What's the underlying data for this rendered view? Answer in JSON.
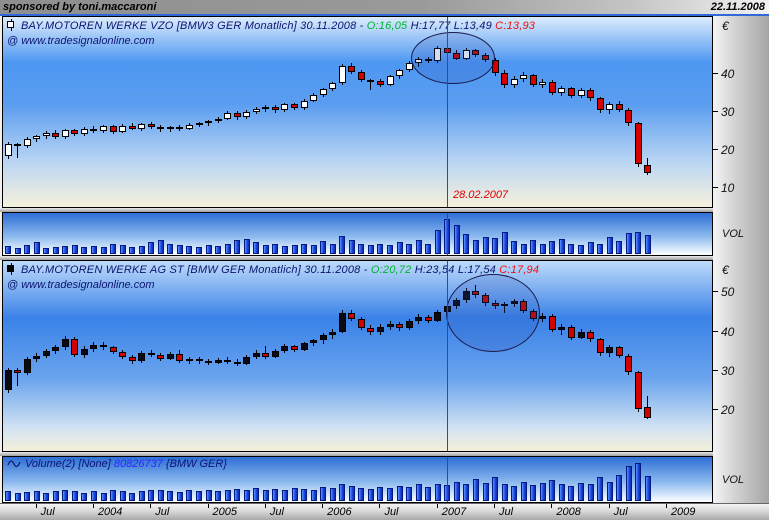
{
  "titlebar": {
    "sponsor": "sponsored by toni.maccaroni",
    "date": "22.11.2008"
  },
  "watermark": "@ www.tradesignalonline.com",
  "axis": {
    "currency_label": "€",
    "volume_label": "VOL"
  },
  "bottom_axis": {
    "labels": [
      "Jul",
      "2004",
      "Jul",
      "2005",
      "Jul",
      "2006",
      "Jul",
      "2007",
      "Jul",
      "2008",
      "Jul",
      "2009"
    ]
  },
  "cursor": {
    "month_index": 46,
    "date_label": "28.02.2007",
    "color": "#ff0000"
  },
  "chart_data": [
    {
      "type": "candlestick",
      "id": "chart1",
      "title": "BAY.MOTOREN WERKE  VZO [BMW3 GER  Monatlich] 30.11.2008 -",
      "ohlc_display": {
        "open": "O:16,05",
        "high_low": "H:17,77 L:13,49",
        "close": "C:13,93"
      },
      "interval": "monthly",
      "start_month": "2003-04",
      "y_axis": {
        "unit": "€",
        "min": 5,
        "max": 55,
        "ticks": [
          40,
          30,
          20,
          10
        ]
      },
      "up_color": "#ffffff",
      "down_color": "#d40000",
      "ellipse": {
        "month": 46.5,
        "price": 44.5,
        "rx_months": 4.3,
        "ry_price": 6.6
      },
      "candles": [
        [
          18.3,
          22.0,
          17.6,
          21.5
        ],
        [
          21.5,
          21.9,
          17.8,
          21.0
        ],
        [
          21.0,
          23.3,
          20.4,
          22.8
        ],
        [
          22.8,
          24.0,
          22.0,
          23.6
        ],
        [
          23.6,
          25.0,
          23.0,
          24.6
        ],
        [
          24.6,
          25.2,
          22.8,
          23.4
        ],
        [
          23.4,
          25.6,
          23.0,
          25.2
        ],
        [
          25.2,
          25.6,
          23.6,
          24.2
        ],
        [
          24.2,
          26.0,
          23.8,
          25.6
        ],
        [
          25.6,
          26.4,
          24.6,
          25.0
        ],
        [
          25.0,
          26.6,
          24.4,
          26.2
        ],
        [
          26.2,
          26.6,
          24.2,
          24.8
        ],
        [
          24.8,
          26.8,
          24.4,
          26.4
        ],
        [
          26.4,
          27.0,
          25.2,
          25.6
        ],
        [
          25.6,
          27.2,
          25.0,
          26.8
        ],
        [
          26.8,
          27.4,
          25.4,
          26.0
        ],
        [
          26.0,
          26.6,
          24.8,
          25.4
        ],
        [
          25.4,
          26.4,
          24.8,
          26.0
        ],
        [
          26.0,
          26.6,
          25.0,
          25.6
        ],
        [
          25.6,
          27.0,
          25.2,
          26.6
        ],
        [
          26.6,
          27.4,
          26.0,
          27.0
        ],
        [
          27.0,
          28.0,
          26.2,
          27.6
        ],
        [
          27.6,
          28.6,
          27.0,
          28.2
        ],
        [
          28.2,
          30.2,
          27.8,
          29.8
        ],
        [
          29.8,
          30.2,
          28.0,
          28.6
        ],
        [
          28.6,
          30.4,
          28.2,
          30.0
        ],
        [
          30.0,
          31.2,
          29.4,
          30.8
        ],
        [
          30.8,
          31.8,
          30.0,
          31.4
        ],
        [
          31.4,
          31.8,
          29.8,
          30.4
        ],
        [
          30.4,
          32.4,
          30.0,
          32.0
        ],
        [
          32.0,
          32.4,
          30.4,
          31.0
        ],
        [
          31.0,
          33.4,
          30.6,
          33.0
        ],
        [
          33.0,
          35.0,
          32.6,
          34.6
        ],
        [
          34.6,
          36.4,
          34.0,
          36.0
        ],
        [
          36.0,
          38.0,
          35.4,
          37.6
        ],
        [
          37.6,
          42.6,
          37.2,
          42.2
        ],
        [
          42.2,
          42.8,
          40.0,
          40.6
        ],
        [
          40.6,
          41.0,
          37.8,
          38.4
        ],
        [
          38.4,
          38.8,
          35.8,
          38.2
        ],
        [
          38.2,
          38.6,
          36.6,
          37.2
        ],
        [
          37.2,
          39.8,
          36.8,
          39.4
        ],
        [
          39.4,
          41.4,
          38.8,
          41.0
        ],
        [
          41.0,
          43.4,
          40.4,
          43.0
        ],
        [
          43.0,
          44.4,
          41.8,
          44.0
        ],
        [
          44.0,
          44.6,
          42.8,
          43.4
        ],
        [
          43.4,
          47.4,
          43.0,
          46.8
        ],
        [
          46.8,
          48.8,
          44.8,
          45.4
        ],
        [
          45.4,
          46.4,
          43.6,
          44.0
        ],
        [
          44.0,
          46.8,
          43.6,
          46.2
        ],
        [
          46.2,
          46.6,
          44.4,
          45.0
        ],
        [
          45.0,
          45.6,
          43.2,
          43.8
        ],
        [
          43.8,
          44.2,
          39.6,
          40.2
        ],
        [
          40.2,
          41.0,
          36.4,
          37.0
        ],
        [
          37.0,
          39.4,
          36.2,
          38.8
        ],
        [
          38.8,
          40.4,
          37.8,
          39.8
        ],
        [
          39.8,
          40.0,
          36.6,
          37.2
        ],
        [
          37.2,
          38.6,
          36.2,
          38.0
        ],
        [
          38.0,
          38.4,
          34.4,
          35.0
        ],
        [
          35.0,
          36.8,
          34.2,
          36.2
        ],
        [
          36.2,
          36.6,
          33.6,
          34.2
        ],
        [
          34.2,
          36.4,
          33.8,
          35.8
        ],
        [
          35.8,
          36.2,
          33.0,
          33.6
        ],
        [
          33.6,
          34.0,
          29.8,
          30.4
        ],
        [
          30.4,
          32.6,
          29.6,
          32.0
        ],
        [
          32.0,
          32.8,
          30.0,
          30.6
        ],
        [
          30.6,
          31.0,
          26.4,
          27.0
        ],
        [
          27.0,
          27.4,
          15.6,
          16.4
        ],
        [
          16.05,
          17.77,
          13.49,
          13.93
        ]
      ]
    },
    {
      "type": "candlestick",
      "id": "chart2",
      "title": "BAY.MOTOREN WERKE AG ST [BMW GER  Monatlich] 30.11.2008 -",
      "ohlc_display": {
        "open": "O:20,72",
        "high_low": "H:23,54 L:17,54",
        "close": "C:17,94"
      },
      "interval": "monthly",
      "start_month": "2003-04",
      "y_axis": {
        "unit": "€",
        "min": 9.5,
        "max": 58,
        "ticks": [
          50,
          40,
          30,
          20
        ]
      },
      "up_color": "#0a0a14",
      "down_color": "#d40000",
      "ellipse": {
        "month": 50.7,
        "price": 45.0,
        "rx_months": 4.8,
        "ry_price": 9.7
      },
      "candles": [
        [
          25.0,
          30.8,
          24.4,
          30.2
        ],
        [
          30.2,
          30.6,
          26.2,
          29.4
        ],
        [
          29.4,
          33.6,
          28.8,
          33.0
        ],
        [
          33.0,
          34.4,
          32.2,
          33.8
        ],
        [
          33.8,
          35.6,
          33.2,
          35.0
        ],
        [
          35.0,
          36.6,
          34.2,
          36.0
        ],
        [
          36.0,
          38.8,
          35.2,
          38.2
        ],
        [
          38.2,
          38.6,
          33.4,
          34.0
        ],
        [
          34.0,
          36.2,
          33.2,
          35.6
        ],
        [
          35.6,
          37.2,
          34.8,
          36.6
        ],
        [
          36.6,
          37.4,
          35.4,
          36.0
        ],
        [
          36.0,
          36.4,
          34.2,
          34.8
        ],
        [
          34.8,
          35.2,
          33.0,
          33.6
        ],
        [
          33.6,
          34.0,
          31.8,
          32.4
        ],
        [
          32.4,
          35.0,
          32.0,
          34.4
        ],
        [
          34.4,
          35.4,
          33.6,
          34.0
        ],
        [
          34.0,
          34.6,
          32.4,
          33.0
        ],
        [
          33.0,
          34.8,
          32.6,
          34.2
        ],
        [
          34.2,
          35.4,
          32.0,
          32.6
        ],
        [
          32.6,
          33.4,
          31.6,
          33.0
        ],
        [
          33.0,
          33.6,
          31.8,
          32.4
        ],
        [
          32.4,
          33.0,
          31.4,
          32.0
        ],
        [
          32.0,
          33.2,
          31.6,
          32.8
        ],
        [
          32.8,
          33.4,
          31.8,
          32.2
        ],
        [
          32.2,
          33.0,
          31.2,
          31.8
        ],
        [
          31.8,
          34.0,
          31.4,
          33.4
        ],
        [
          33.4,
          35.2,
          33.0,
          34.6
        ],
        [
          34.6,
          36.4,
          33.0,
          33.6
        ],
        [
          33.6,
          35.6,
          33.2,
          35.0
        ],
        [
          35.0,
          36.8,
          34.4,
          36.2
        ],
        [
          36.2,
          36.6,
          34.8,
          35.4
        ],
        [
          35.4,
          37.4,
          35.0,
          37.0
        ],
        [
          37.0,
          38.2,
          36.2,
          37.8
        ],
        [
          37.8,
          39.6,
          36.8,
          39.0
        ],
        [
          39.0,
          40.6,
          38.2,
          40.0
        ],
        [
          40.0,
          45.4,
          39.6,
          44.8
        ],
        [
          44.8,
          45.4,
          42.6,
          43.2
        ],
        [
          43.2,
          43.8,
          40.4,
          41.0
        ],
        [
          41.0,
          41.6,
          39.2,
          39.8
        ],
        [
          39.8,
          41.8,
          39.0,
          41.2
        ],
        [
          41.2,
          42.6,
          40.4,
          42.0
        ],
        [
          42.0,
          42.4,
          40.2,
          40.8
        ],
        [
          40.8,
          43.2,
          40.4,
          42.6
        ],
        [
          42.6,
          44.4,
          42.0,
          43.8
        ],
        [
          43.8,
          44.2,
          42.2,
          42.8
        ],
        [
          42.8,
          45.6,
          42.4,
          45.0
        ],
        [
          45.0,
          47.0,
          44.4,
          46.6
        ],
        [
          46.6,
          48.6,
          45.8,
          48.0
        ],
        [
          48.0,
          51.0,
          47.2,
          50.4
        ],
        [
          50.4,
          51.8,
          48.6,
          49.2
        ],
        [
          49.2,
          49.8,
          46.6,
          47.2
        ],
        [
          47.2,
          48.0,
          45.8,
          46.4
        ],
        [
          46.4,
          47.6,
          44.8,
          47.0
        ],
        [
          47.0,
          48.2,
          46.2,
          47.8
        ],
        [
          47.8,
          48.4,
          44.6,
          45.2
        ],
        [
          45.2,
          45.8,
          42.6,
          43.2
        ],
        [
          43.2,
          44.6,
          42.4,
          44.0
        ],
        [
          44.0,
          44.4,
          39.8,
          40.4
        ],
        [
          40.4,
          41.8,
          39.2,
          41.2
        ],
        [
          41.2,
          41.6,
          37.8,
          38.4
        ],
        [
          38.4,
          40.6,
          38.0,
          40.0
        ],
        [
          40.0,
          40.4,
          37.4,
          38.0
        ],
        [
          38.0,
          38.4,
          33.8,
          34.4
        ],
        [
          34.4,
          36.6,
          33.6,
          36.0
        ],
        [
          36.0,
          36.4,
          33.2,
          33.8
        ],
        [
          33.8,
          34.2,
          29.0,
          29.6
        ],
        [
          29.6,
          30.0,
          19.4,
          20.2
        ],
        [
          20.72,
          23.54,
          17.54,
          17.94
        ]
      ]
    },
    {
      "type": "bar",
      "id": "vol1",
      "label": "VOL",
      "bar_color": "#1f47e0",
      "heights_pct": [
        22,
        16,
        26,
        34,
        18,
        20,
        24,
        26,
        20,
        24,
        20,
        30,
        26,
        20,
        24,
        34,
        40,
        30,
        26,
        22,
        20,
        26,
        24,
        30,
        40,
        44,
        34,
        26,
        30,
        22,
        26,
        30,
        26,
        36,
        30,
        52,
        40,
        30,
        26,
        30,
        26,
        34,
        30,
        40,
        30,
        68,
        100,
        84,
        56,
        40,
        50,
        46,
        64,
        36,
        30,
        40,
        30,
        36,
        44,
        30,
        26,
        34,
        30,
        50,
        36,
        60,
        64,
        54
      ]
    },
    {
      "type": "bar",
      "id": "vol2",
      "label": "VOL",
      "bar_color": "#1f47e0",
      "header": {
        "name": "Volume(2) [None]",
        "value": "80826737",
        "symbol": "{BMW GER}"
      },
      "heights_pct": [
        26,
        20,
        24,
        26,
        22,
        26,
        28,
        26,
        22,
        26,
        22,
        28,
        26,
        22,
        26,
        30,
        28,
        26,
        24,
        28,
        26,
        30,
        26,
        30,
        32,
        30,
        34,
        30,
        32,
        30,
        34,
        32,
        30,
        38,
        34,
        44,
        40,
        34,
        32,
        36,
        34,
        40,
        36,
        44,
        38,
        46,
        42,
        50,
        44,
        58,
        48,
        62,
        46,
        40,
        50,
        42,
        48,
        56,
        44,
        40,
        48,
        44,
        62,
        50,
        68,
        92,
        100,
        66
      ]
    }
  ]
}
